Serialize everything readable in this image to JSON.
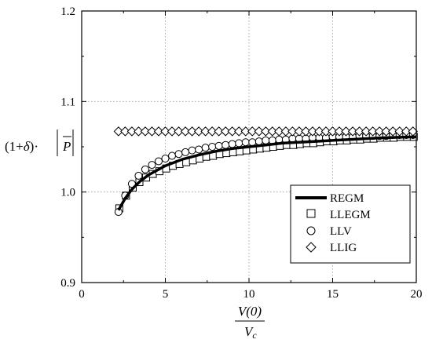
{
  "chart_data": {
    "type": "line",
    "title": "",
    "xlim": [
      0,
      20
    ],
    "ylim": [
      0.9,
      1.2
    ],
    "x_ticks": [
      "0",
      "5",
      "10",
      "15",
      "20"
    ],
    "y_ticks": [
      "0.9",
      "1.0",
      "1.1",
      "1.2"
    ],
    "grid": true,
    "legend_position": "lower-right",
    "ylabel": {
      "prefix": "(1+",
      "delta": "δ",
      "mid": ")·",
      "var": "P"
    },
    "xlabel": {
      "numerator": "V(0)",
      "denominator": "V",
      "subscript": "c"
    },
    "series": [
      {
        "name": "REGM",
        "style": "line",
        "x": [
          2.2,
          2.6,
          3.0,
          3.5,
          4.0,
          4.5,
          5.0,
          6.0,
          7.0,
          8.0,
          9.0,
          10.0,
          11.0,
          12.0,
          13.0,
          14.0,
          15.0,
          16.0,
          17.0,
          18.0,
          19.0,
          20.0
        ],
        "y": [
          0.98,
          0.993,
          1.003,
          1.012,
          1.019,
          1.024,
          1.029,
          1.036,
          1.041,
          1.045,
          1.048,
          1.05,
          1.052,
          1.054,
          1.055,
          1.056,
          1.057,
          1.058,
          1.059,
          1.06,
          1.0605,
          1.061
        ]
      },
      {
        "name": "LLEGM",
        "style": "square",
        "x": [
          2.25,
          2.65,
          3.05,
          3.45,
          3.85,
          4.25,
          4.65,
          5.05,
          5.45,
          5.85,
          6.25,
          6.65,
          7.05,
          7.45,
          7.85,
          8.25,
          8.65,
          9.05,
          9.45,
          9.85,
          10.25,
          10.65,
          11.05,
          11.45,
          11.85,
          12.25,
          12.65,
          13.05,
          13.45,
          13.85,
          14.25,
          14.65,
          15.05,
          15.45,
          15.85,
          16.25,
          16.65,
          17.05,
          17.45,
          17.85,
          18.25,
          18.65,
          19.05,
          19.45,
          19.85
        ],
        "y": [
          0.982,
          0.996,
          1.005,
          1.011,
          1.016,
          1.02,
          1.023,
          1.026,
          1.029,
          1.031,
          1.033,
          1.035,
          1.037,
          1.039,
          1.04,
          1.042,
          1.043,
          1.044,
          1.045,
          1.046,
          1.047,
          1.048,
          1.049,
          1.05,
          1.051,
          1.052,
          1.052,
          1.053,
          1.054,
          1.054,
          1.055,
          1.056,
          1.056,
          1.057,
          1.057,
          1.058,
          1.058,
          1.059,
          1.059,
          1.06,
          1.06,
          1.06,
          1.061,
          1.061,
          1.061
        ]
      },
      {
        "name": "LLV",
        "style": "circle",
        "x": [
          2.2,
          2.6,
          3.0,
          3.4,
          3.8,
          4.2,
          4.6,
          5.0,
          5.4,
          5.8,
          6.2,
          6.6,
          7.0,
          7.4,
          7.8,
          8.2,
          8.6,
          9.0,
          9.4,
          9.8,
          10.2,
          10.6,
          11.0,
          11.4,
          11.8,
          12.2,
          12.6,
          13.0,
          13.4,
          13.8,
          14.2,
          14.6,
          15.0,
          15.4,
          15.8,
          16.2,
          16.6,
          17.0,
          17.4,
          17.8,
          18.2,
          18.6,
          19.0,
          19.4,
          19.8
        ],
        "y": [
          0.978,
          0.996,
          1.009,
          1.018,
          1.025,
          1.03,
          1.034,
          1.037,
          1.04,
          1.042,
          1.044,
          1.046,
          1.047,
          1.049,
          1.05,
          1.051,
          1.052,
          1.053,
          1.054,
          1.055,
          1.055,
          1.056,
          1.057,
          1.057,
          1.058,
          1.058,
          1.059,
          1.059,
          1.059,
          1.06,
          1.06,
          1.06,
          1.061,
          1.061,
          1.061,
          1.061,
          1.062,
          1.062,
          1.062,
          1.062,
          1.062,
          1.063,
          1.063,
          1.063,
          1.063
        ]
      },
      {
        "name": "LLIG",
        "style": "diamond",
        "x": [
          2.2,
          2.6,
          3.0,
          3.4,
          3.8,
          4.2,
          4.6,
          5.0,
          5.4,
          5.8,
          6.2,
          6.6,
          7.0,
          7.4,
          7.8,
          8.2,
          8.6,
          9.0,
          9.4,
          9.8,
          10.2,
          10.6,
          11.0,
          11.4,
          11.8,
          12.2,
          12.6,
          13.0,
          13.4,
          13.8,
          14.2,
          14.6,
          15.0,
          15.4,
          15.8,
          16.2,
          16.6,
          17.0,
          17.4,
          17.8,
          18.2,
          18.6,
          19.0,
          19.4,
          19.8
        ],
        "y": [
          1.067,
          1.067,
          1.067,
          1.067,
          1.067,
          1.067,
          1.067,
          1.067,
          1.067,
          1.067,
          1.067,
          1.067,
          1.067,
          1.067,
          1.067,
          1.067,
          1.067,
          1.067,
          1.067,
          1.067,
          1.067,
          1.067,
          1.067,
          1.067,
          1.067,
          1.067,
          1.067,
          1.067,
          1.067,
          1.067,
          1.067,
          1.067,
          1.067,
          1.067,
          1.067,
          1.067,
          1.067,
          1.067,
          1.067,
          1.067,
          1.067,
          1.067,
          1.067,
          1.067,
          1.067
        ]
      }
    ]
  }
}
